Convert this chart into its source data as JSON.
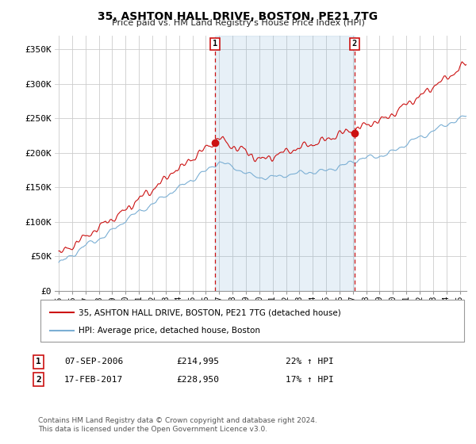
{
  "title": "35, ASHTON HALL DRIVE, BOSTON, PE21 7TG",
  "subtitle": "Price paid vs. HM Land Registry's House Price Index (HPI)",
  "ylabel_ticks": [
    "£0",
    "£50K",
    "£100K",
    "£150K",
    "£200K",
    "£250K",
    "£300K",
    "£350K"
  ],
  "ytick_values": [
    0,
    50000,
    100000,
    150000,
    200000,
    250000,
    300000,
    350000
  ],
  "ylim": [
    0,
    370000
  ],
  "xlim_start": 1994.7,
  "xlim_end": 2025.5,
  "sale1_year": 2006.69,
  "sale1_price": 214995,
  "sale2_year": 2017.12,
  "sale2_price": 228950,
  "hpi_color": "#7bafd4",
  "hpi_fill_color": "#ddeeff",
  "price_color": "#cc1111",
  "annotation_color": "#cc1111",
  "grid_color": "#cccccc",
  "bg_color": "#ffffff",
  "legend_label_price": "35, ASHTON HALL DRIVE, BOSTON, PE21 7TG (detached house)",
  "legend_label_hpi": "HPI: Average price, detached house, Boston",
  "note1_label": "1",
  "note1_date": "07-SEP-2006",
  "note1_price": "£214,995",
  "note1_hpi": "22% ↑ HPI",
  "note2_label": "2",
  "note2_date": "17-FEB-2017",
  "note2_price": "£228,950",
  "note2_hpi": "17% ↑ HPI",
  "footer": "Contains HM Land Registry data © Crown copyright and database right 2024.\nThis data is licensed under the Open Government Licence v3.0."
}
